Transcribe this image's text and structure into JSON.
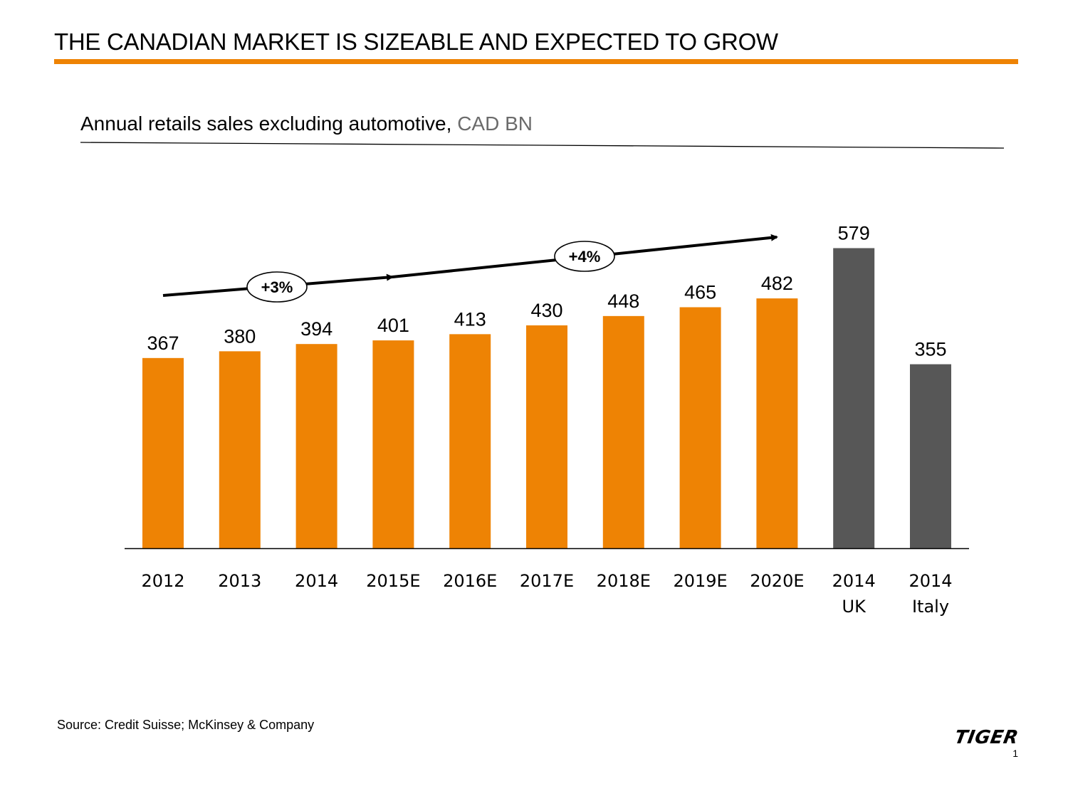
{
  "slide": {
    "title": "THE CANADIAN MARKET IS SIZEABLE AND EXPECTED TO GROW",
    "subtitle_main": "Annual retails sales excluding automotive, ",
    "subtitle_unit": "CAD BN",
    "source": "Source: Credit Suisse; McKinsey & Company",
    "logo": "TIGER",
    "page_number": "1"
  },
  "colors": {
    "accent": "#ee8304",
    "comparison": "#575757"
  },
  "chart_data": {
    "type": "bar",
    "title": "Annual retails sales excluding automotive, CAD BN",
    "xlabel": "",
    "ylabel": "",
    "ylim": [
      0,
      650
    ],
    "grid": false,
    "categories": [
      [
        "2012"
      ],
      [
        "2013"
      ],
      [
        "2014"
      ],
      [
        "2015E"
      ],
      [
        "2016E"
      ],
      [
        "2017E"
      ],
      [
        "2018E"
      ],
      [
        "2019E"
      ],
      [
        "2020E"
      ],
      [
        "2014",
        "UK"
      ],
      [
        "2014",
        "Italy"
      ]
    ],
    "values": [
      367,
      380,
      394,
      401,
      413,
      430,
      448,
      465,
      482,
      579,
      355
    ],
    "series_group": [
      "canada",
      "canada",
      "canada",
      "canada",
      "canada",
      "canada",
      "canada",
      "canada",
      "canada",
      "comparison",
      "comparison"
    ],
    "annotations": [
      {
        "label": "+3%",
        "from_index": 0,
        "to_index": 3
      },
      {
        "label": "+4%",
        "from_index": 3,
        "to_index": 8
      }
    ]
  }
}
